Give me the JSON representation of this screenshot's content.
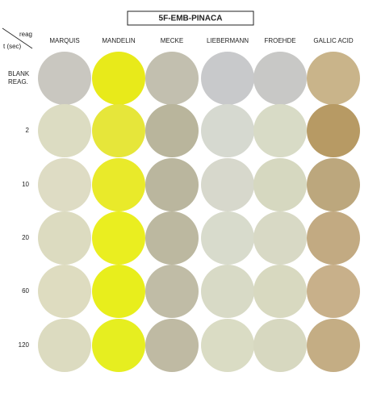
{
  "title": "5F-EMB-PINACA",
  "corner": {
    "top": "reag",
    "bottom": "t (sec)"
  },
  "columns": [
    "MARQUIS",
    "MANDELIN",
    "MECKE",
    "LIEBERMANN",
    "FROEHDE",
    "GALLIC ACID"
  ],
  "rows": [
    {
      "label": [
        "BLANK",
        "REAG."
      ],
      "colors": [
        "#c9c7c0",
        "#e8ea1a",
        "#c2bfaf",
        "#c8c9cb",
        "#c8c8c6",
        "#c9b48a"
      ]
    },
    {
      "label": [
        "2"
      ],
      "colors": [
        "#dcdcc2",
        "#e6e63a",
        "#b9b59c",
        "#d6d9d0",
        "#d8dbc6",
        "#b79a64"
      ]
    },
    {
      "label": [
        "10"
      ],
      "colors": [
        "#dedcc4",
        "#e9ea2a",
        "#bab69e",
        "#d7d8cc",
        "#d6d8c0",
        "#bca77d"
      ]
    },
    {
      "label": [
        "20"
      ],
      "colors": [
        "#dcdbc0",
        "#eaee20",
        "#bcb8a0",
        "#d8dbcc",
        "#d8d9c5",
        "#c2aa82"
      ]
    },
    {
      "label": [
        "60"
      ],
      "colors": [
        "#dedcc0",
        "#e8ee1c",
        "#c0bca6",
        "#d8dac6",
        "#d8d9c0",
        "#c8b08a"
      ]
    },
    {
      "label": [
        "120"
      ],
      "colors": [
        "#dcdbc0",
        "#e6ee20",
        "#bfbaa3",
        "#dadcc4",
        "#d7d8c0",
        "#c4ad84"
      ]
    }
  ]
}
